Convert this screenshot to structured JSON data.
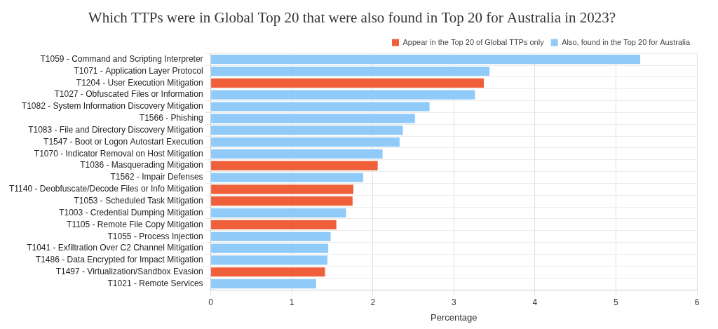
{
  "chart_data": {
    "type": "bar",
    "orientation": "horizontal",
    "title": "Which TTPs were in Global Top 20 that were also found in Top 20 for Australia in 2023?",
    "x_label": "Percentage",
    "categories": [
      "T1059 - Command and Scripting Interpreter",
      "T1071 - Application Layer Protocol",
      "T1204 - User Execution Mitigation",
      "T1027 - Obfuscated Files or Information",
      "T1082 - System Information Discovery Mitigation",
      "T1566 - Phishing",
      "T1083 - File and Directory Discovery Mitigation",
      "T1547 - Boot or Logon Autostart Execution",
      "T1070 - Indicator Removal on Host Mitigation",
      "T1036 - Masquerading Mitigation",
      "T1562 - Impair Defenses",
      "T1140 - Deobfuscate/Decode Files or Info Mitigation",
      "T1053 - Scheduled Task Mitigation",
      "T1003 - Credential Dumping Mitigation",
      "T1105 - Remote File Copy Mitigation",
      "T1055 - Process Injection",
      "T1041 - Exfiltration Over C2 Channel Mitigation",
      "T1486 - Data Encrypted for Impact Mitigation",
      "T1497 - Virtualization/Sandbox Evasion",
      "T1021 - Remote Services"
    ],
    "series": [
      {
        "name": "Appear in the Top 20 of Global TTPs only",
        "color": "#ee5f3a",
        "values": [
          null,
          null,
          3.37,
          null,
          null,
          null,
          null,
          null,
          null,
          2.06,
          null,
          1.76,
          1.75,
          null,
          1.55,
          null,
          null,
          null,
          1.41,
          null
        ]
      },
      {
        "name": "Also, found in the Top 20 for Australia",
        "color": "#90caf9",
        "values": [
          5.3,
          3.44,
          null,
          3.26,
          2.7,
          2.52,
          2.37,
          2.33,
          2.12,
          null,
          1.88,
          null,
          null,
          1.67,
          null,
          1.48,
          1.45,
          1.44,
          null,
          1.3
        ]
      }
    ],
    "xlim": [
      0,
      6
    ],
    "xticks": [
      0,
      1,
      2,
      3,
      4,
      5,
      6
    ],
    "grid": true,
    "legend": "top-right"
  }
}
